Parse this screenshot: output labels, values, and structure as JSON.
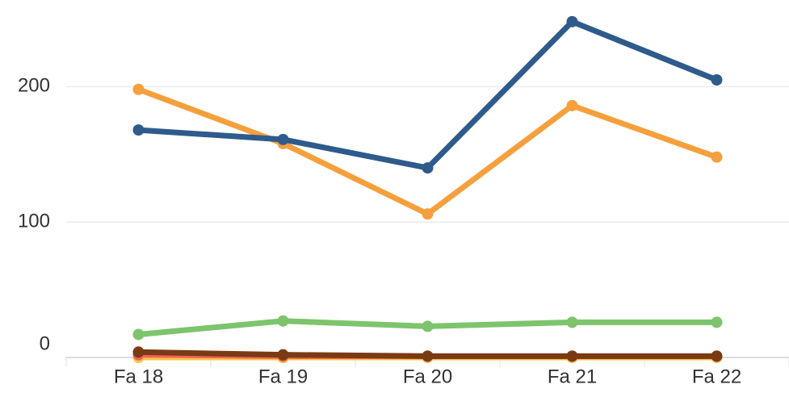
{
  "chart_data": {
    "type": "line",
    "categories": [
      "Fa 18",
      "Fa 19",
      "Fa 20",
      "Fa 21",
      "Fa 22"
    ],
    "series": [
      {
        "color": "#2e5b8c",
        "values": [
          168,
          161,
          140,
          248,
          205
        ]
      },
      {
        "color": "#f5a03c",
        "values": [
          198,
          158,
          106,
          186,
          148
        ]
      },
      {
        "color": "#7dc46c",
        "values": [
          17,
          27,
          23,
          26,
          26
        ]
      },
      {
        "color": "#7a3a14",
        "values": [
          4,
          2,
          1,
          1,
          1
        ]
      },
      {
        "color": "#f0625a",
        "values": [
          2,
          1,
          1,
          1,
          1
        ]
      },
      {
        "color": "#f5c64a",
        "values": [
          0,
          0,
          0,
          0,
          0
        ]
      },
      {
        "color": "#a98bd4",
        "values": [
          null,
          0,
          0,
          0,
          0
        ]
      }
    ],
    "ylim": [
      0,
      264
    ],
    "yticks": [
      0,
      100,
      200
    ],
    "grid": true
  }
}
